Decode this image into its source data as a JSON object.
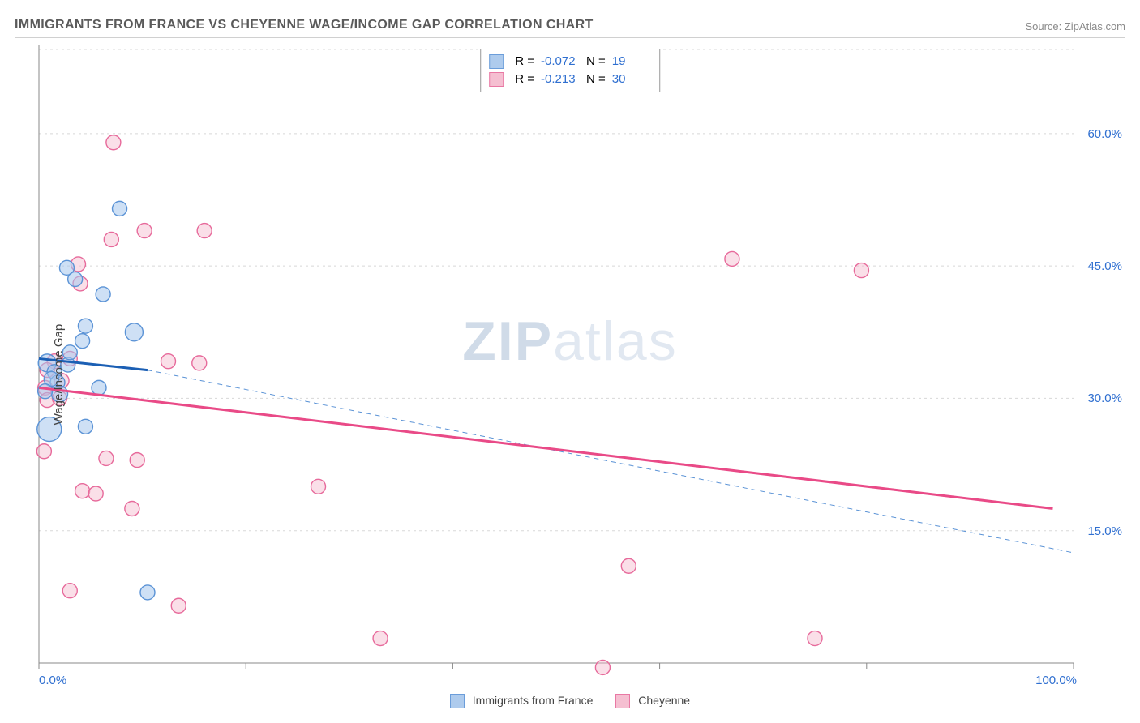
{
  "header": {
    "title": "IMMIGRANTS FROM FRANCE VS CHEYENNE WAGE/INCOME GAP CORRELATION CHART",
    "source": "Source: ZipAtlas.com"
  },
  "chart": {
    "type": "scatter",
    "ylabel": "Wage/Income Gap",
    "watermark": "ZIPatlas",
    "background_color": "#ffffff",
    "grid_color": "#d8d8d8",
    "axis_color": "#888888",
    "text_color": "#444444",
    "value_color": "#2f6fd0",
    "xlim": [
      0,
      100
    ],
    "ylim": [
      0,
      70
    ],
    "xticks": [
      0,
      20,
      40,
      60,
      80,
      100
    ],
    "xtick_labels": [
      "0.0%",
      "",
      "",
      "",
      "",
      "100.0%"
    ],
    "yticks": [
      15,
      30,
      45,
      60
    ],
    "ytick_labels": [
      "15.0%",
      "30.0%",
      "45.0%",
      "60.0%"
    ],
    "series": [
      {
        "name": "Immigrants from France",
        "fill": "#a6c6ec",
        "stroke": "#5b93d6",
        "fill_opacity": 0.55,
        "marker_radius": 9,
        "R": "-0.072",
        "N": "19",
        "trend": {
          "x1": 0,
          "y1": 34.5,
          "x2": 10.5,
          "y2": 33.2,
          "stroke": "#1b5fb4",
          "width": 3,
          "dash": ""
        },
        "trend_ext": {
          "x1": 10.5,
          "y1": 33.2,
          "x2": 100,
          "y2": 12.5,
          "stroke": "#5b93d6",
          "width": 1,
          "dash": "6 5"
        },
        "points": [
          {
            "x": 2.7,
            "y": 44.8,
            "r": 9
          },
          {
            "x": 3.5,
            "y": 43.5,
            "r": 9
          },
          {
            "x": 7.8,
            "y": 51.5,
            "r": 9
          },
          {
            "x": 6.2,
            "y": 41.8,
            "r": 9
          },
          {
            "x": 4.5,
            "y": 38.2,
            "r": 9
          },
          {
            "x": 9.2,
            "y": 37.5,
            "r": 11
          },
          {
            "x": 4.2,
            "y": 36.5,
            "r": 9
          },
          {
            "x": 0.8,
            "y": 34.0,
            "r": 11
          },
          {
            "x": 1.5,
            "y": 33.0,
            "r": 9
          },
          {
            "x": 1.8,
            "y": 31.8,
            "r": 9
          },
          {
            "x": 5.8,
            "y": 31.2,
            "r": 9
          },
          {
            "x": 2.0,
            "y": 30.5,
            "r": 10
          },
          {
            "x": 1.0,
            "y": 26.5,
            "r": 15
          },
          {
            "x": 4.5,
            "y": 26.8,
            "r": 9
          },
          {
            "x": 10.5,
            "y": 8.0,
            "r": 9
          },
          {
            "x": 2.8,
            "y": 33.8,
            "r": 9
          },
          {
            "x": 3.0,
            "y": 35.2,
            "r": 9
          },
          {
            "x": 1.2,
            "y": 32.2,
            "r": 9
          },
          {
            "x": 0.6,
            "y": 30.8,
            "r": 9
          }
        ]
      },
      {
        "name": "Cheyenne",
        "fill": "#f5b9cd",
        "stroke": "#e76a9b",
        "fill_opacity": 0.45,
        "marker_radius": 9,
        "R": "-0.213",
        "N": "30",
        "trend": {
          "x1": 0,
          "y1": 31.2,
          "x2": 98,
          "y2": 17.5,
          "stroke": "#e94a87",
          "width": 3,
          "dash": ""
        },
        "points": [
          {
            "x": 7.2,
            "y": 59.0,
            "r": 9
          },
          {
            "x": 10.2,
            "y": 49.0,
            "r": 9
          },
          {
            "x": 16.0,
            "y": 49.0,
            "r": 9
          },
          {
            "x": 7.0,
            "y": 48.0,
            "r": 9
          },
          {
            "x": 3.8,
            "y": 45.2,
            "r": 9
          },
          {
            "x": 67.0,
            "y": 45.8,
            "r": 9
          },
          {
            "x": 79.5,
            "y": 44.5,
            "r": 9
          },
          {
            "x": 4.0,
            "y": 43.0,
            "r": 9
          },
          {
            "x": 12.5,
            "y": 34.2,
            "r": 9
          },
          {
            "x": 15.5,
            "y": 34.0,
            "r": 9
          },
          {
            "x": 1.5,
            "y": 34.2,
            "r": 9
          },
          {
            "x": 0.6,
            "y": 31.2,
            "r": 9
          },
          {
            "x": 0.8,
            "y": 29.8,
            "r": 9
          },
          {
            "x": 2.2,
            "y": 32.0,
            "r": 9
          },
          {
            "x": 0.5,
            "y": 24.0,
            "r": 9
          },
          {
            "x": 6.5,
            "y": 23.2,
            "r": 9
          },
          {
            "x": 9.5,
            "y": 23.0,
            "r": 9
          },
          {
            "x": 4.2,
            "y": 19.5,
            "r": 9
          },
          {
            "x": 5.5,
            "y": 19.2,
            "r": 9
          },
          {
            "x": 9.0,
            "y": 17.5,
            "r": 9
          },
          {
            "x": 27.0,
            "y": 20.0,
            "r": 9
          },
          {
            "x": 57.0,
            "y": 11.0,
            "r": 9
          },
          {
            "x": 3.0,
            "y": 8.2,
            "r": 9
          },
          {
            "x": 13.5,
            "y": 6.5,
            "r": 9
          },
          {
            "x": 33.0,
            "y": 2.8,
            "r": 9
          },
          {
            "x": 75.0,
            "y": 2.8,
            "r": 9
          },
          {
            "x": 54.5,
            "y": -0.5,
            "r": 9
          },
          {
            "x": 0.8,
            "y": 33.2,
            "r": 9
          },
          {
            "x": 2.0,
            "y": 30.0,
            "r": 9
          },
          {
            "x": 3.0,
            "y": 34.5,
            "r": 9
          }
        ]
      }
    ]
  }
}
